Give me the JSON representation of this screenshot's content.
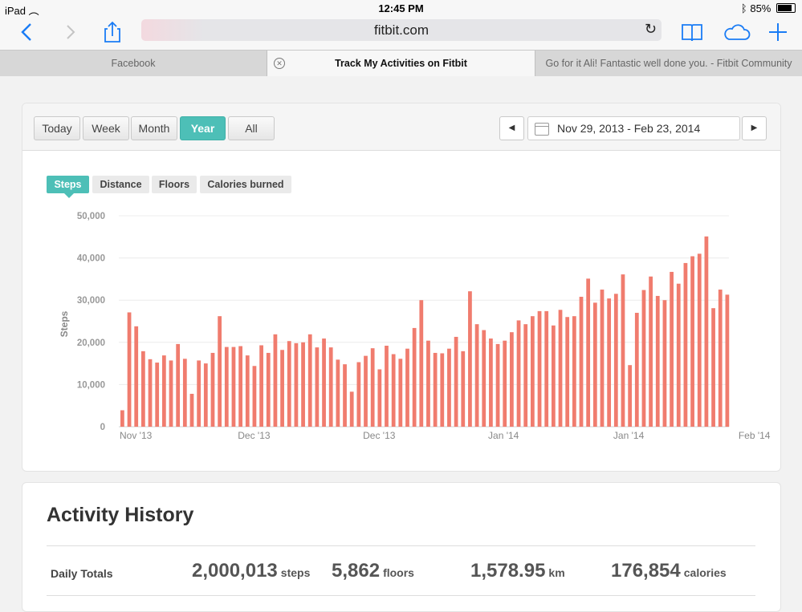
{
  "status": {
    "device": "iPad",
    "time": "12:45 PM",
    "battery": "85%",
    "battery_level": 0.85
  },
  "browser": {
    "url": "fitbit.com"
  },
  "tabs": [
    {
      "title": "Facebook"
    },
    {
      "title": "Track My Activities on Fitbit"
    },
    {
      "title": "Go for it Ali! Fantastic well done you. - Fitbit Community"
    }
  ],
  "period": {
    "buttons": [
      "Today",
      "Week",
      "Month",
      "Year",
      "All"
    ],
    "selected": "Year"
  },
  "daterange": "Nov 29, 2013 - Feb 23, 2014",
  "metric_tabs": {
    "items": [
      "Steps",
      "Distance",
      "Floors",
      "Calories burned"
    ],
    "selected": "Steps"
  },
  "chart_data": {
    "type": "bar",
    "ylabel": "Steps",
    "ylim": [
      0,
      50000
    ],
    "yticks": [
      "0",
      "10,000",
      "20,000",
      "30,000",
      "40,000",
      "50,000"
    ],
    "xtick_labels": [
      "Nov '13",
      "Dec '13",
      "Dec '13",
      "Jan '14",
      "Jan '14",
      "Feb '14",
      "Feb '14"
    ],
    "xtick_bar_index": [
      0,
      17,
      35,
      53,
      71,
      89,
      107
    ],
    "color": "#f07c6e",
    "values": [
      3900,
      27100,
      23800,
      17900,
      16000,
      15200,
      16900,
      15700,
      19600,
      16100,
      7800,
      15700,
      15000,
      17500,
      26200,
      18900,
      18900,
      19100,
      16900,
      14400,
      19300,
      17500,
      21900,
      18200,
      20300,
      19800,
      20000,
      21900,
      18800,
      20900,
      18800,
      15900,
      14800,
      8300,
      15300,
      16800,
      18600,
      13600,
      19200,
      17200,
      16100,
      18500,
      23400,
      30000,
      20400,
      17500,
      17400,
      18500,
      21300,
      17900,
      32100,
      24300,
      22900,
      20900,
      19600,
      20400,
      22400,
      25200,
      24300,
      26200,
      27400,
      27400,
      24000,
      27700,
      26000,
      26200,
      30800,
      35100,
      29400,
      32500,
      30400,
      31500,
      36100,
      14600,
      27000,
      32400,
      35600,
      31000,
      30000,
      36700,
      33900,
      38800,
      40400,
      41000,
      45100,
      28100,
      32500,
      31300
    ]
  },
  "history": {
    "title": "Activity History",
    "row_label": "Daily Totals",
    "stats": [
      {
        "value": "2,000,013",
        "unit": "steps"
      },
      {
        "value": "5,862",
        "unit": "floors"
      },
      {
        "value": "1,578.95",
        "unit": "km"
      },
      {
        "value": "176,854",
        "unit": "calories"
      }
    ]
  }
}
